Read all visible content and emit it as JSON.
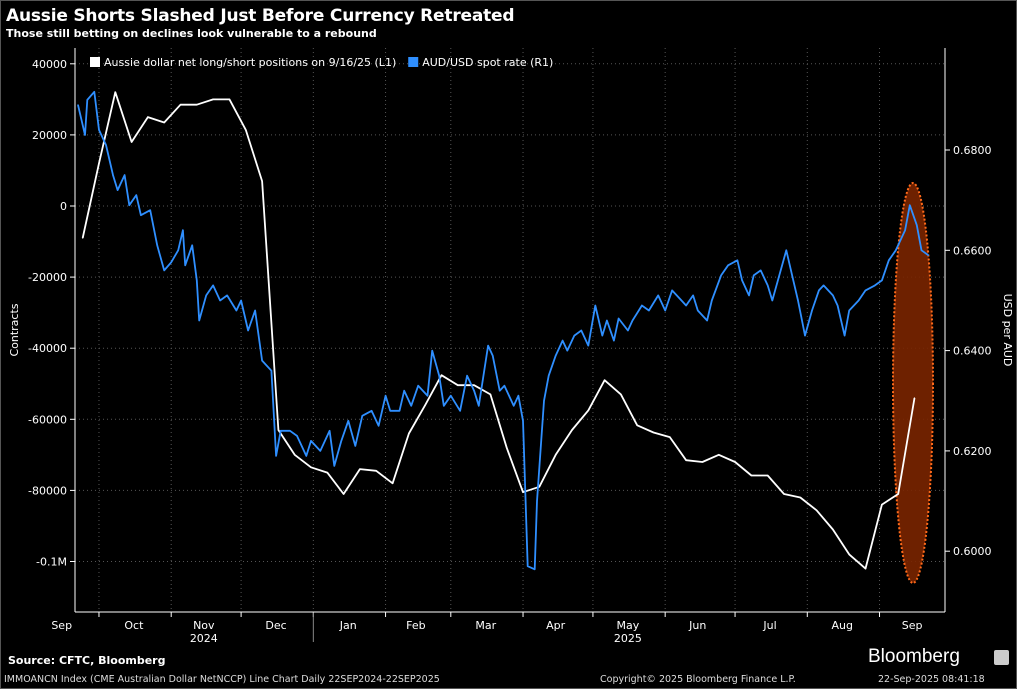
{
  "title": "Aussie Shorts Slashed Just Before Currency Retreated",
  "subtitle": "Those still betting on declines look vulnerable to a rebound",
  "source": "Source: CFTC, Bloomberg",
  "brand": "Bloomberg",
  "footer": {
    "left": "IMMOANCN Index (CME Australian Dollar NetNCCP) Line Chart  Daily 22SEP2024-22SEP2025",
    "mid": "Copyright© 2025 Bloomberg Finance L.P.",
    "right": "22-Sep-2025 08:41:18"
  },
  "chart_data": {
    "type": "line",
    "title": "Aussie Shorts Slashed Just Before Currency Retreated",
    "subtitle": "Those still betting on declines look vulnerable to a rebound",
    "ylabel_left": "Contracts",
    "ylabel_right": "USD per AUD",
    "xlim": [
      "2024-09-22",
      "2025-09-22"
    ],
    "ylim_left": [
      -110000,
      45000
    ],
    "ylim_right": [
      0.592,
      0.698
    ],
    "yticks_left": [
      {
        "v": 40000,
        "label": "40000"
      },
      {
        "v": 20000,
        "label": "20000"
      },
      {
        "v": 0,
        "label": "0"
      },
      {
        "v": -20000,
        "label": "-20000"
      },
      {
        "v": -40000,
        "label": "-40000"
      },
      {
        "v": -60000,
        "label": "-60000"
      },
      {
        "v": -80000,
        "label": "-80000"
      },
      {
        "v": -100000,
        "label": "-0.1M"
      }
    ],
    "yticks_right": [
      {
        "v": 0.68,
        "label": "0.6800"
      },
      {
        "v": 0.66,
        "label": "0.6600"
      },
      {
        "v": 0.64,
        "label": "0.6400"
      },
      {
        "v": 0.62,
        "label": "0.6200"
      },
      {
        "v": 0.6,
        "label": "0.6000"
      }
    ],
    "xticks": [
      {
        "d": "2024-09-15",
        "label": "Sep"
      },
      {
        "d": "2024-10-16",
        "label": "Oct"
      },
      {
        "d": "2024-11-15",
        "label": "Nov"
      },
      {
        "d": "2024-12-16",
        "label": "Dec"
      },
      {
        "d": "2025-01-16",
        "label": "Jan"
      },
      {
        "d": "2025-02-14",
        "label": "Feb"
      },
      {
        "d": "2025-03-16",
        "label": "Mar"
      },
      {
        "d": "2025-04-15",
        "label": "Apr"
      },
      {
        "d": "2025-05-16",
        "label": "May"
      },
      {
        "d": "2025-06-15",
        "label": "Jun"
      },
      {
        "d": "2025-07-16",
        "label": "Jul"
      },
      {
        "d": "2025-08-16",
        "label": "Aug"
      },
      {
        "d": "2025-09-15",
        "label": "Sep"
      }
    ],
    "year_labels": [
      {
        "d": "2024-11-15",
        "label": "2024"
      },
      {
        "d": "2025-05-16",
        "label": "2025"
      }
    ],
    "grid": true,
    "legend_position": "top-left",
    "highlight_color": "#ff6a1a",
    "series": [
      {
        "name": "Aussie dollar net long/short positions on 9/16/25 (L1)",
        "axis": "left",
        "color": "#ffffff",
        "x": [
          "2024-09-24",
          "2024-10-01",
          "2024-10-08",
          "2024-10-15",
          "2024-10-22",
          "2024-10-29",
          "2024-11-05",
          "2024-11-12",
          "2024-11-19",
          "2024-11-26",
          "2024-12-03",
          "2024-12-10",
          "2024-12-17",
          "2024-12-24",
          "2024-12-31",
          "2025-01-07",
          "2025-01-14",
          "2025-01-21",
          "2025-01-28",
          "2025-02-04",
          "2025-02-11",
          "2025-02-18",
          "2025-02-25",
          "2025-03-04",
          "2025-03-11",
          "2025-03-18",
          "2025-03-25",
          "2025-04-01",
          "2025-04-08",
          "2025-04-15",
          "2025-04-22",
          "2025-04-29",
          "2025-05-06",
          "2025-05-13",
          "2025-05-20",
          "2025-05-27",
          "2025-06-03",
          "2025-06-10",
          "2025-06-17",
          "2025-06-24",
          "2025-07-01",
          "2025-07-08",
          "2025-07-15",
          "2025-07-22",
          "2025-07-29",
          "2025-08-05",
          "2025-08-12",
          "2025-08-19",
          "2025-08-26",
          "2025-09-02",
          "2025-09-09",
          "2025-09-16"
        ],
        "values": [
          -9000,
          12000,
          32000,
          18000,
          25000,
          23500,
          28500,
          28500,
          30000,
          30000,
          21400,
          7000,
          -63000,
          -70000,
          -73500,
          -75000,
          -81000,
          -74000,
          -74500,
          -78000,
          -64000,
          -56000,
          -47600,
          -50400,
          -50400,
          -53000,
          -68000,
          -80500,
          -79000,
          -70000,
          -63000,
          -57500,
          -49000,
          -53000,
          -61700,
          -63700,
          -65000,
          -71500,
          -72000,
          -70000,
          -72000,
          -75800,
          -75800,
          -81000,
          -82000,
          -85600,
          -91000,
          -98000,
          -102000,
          -84000,
          -81000,
          -54000
        ]
      },
      {
        "name": "AUD/USD spot rate (R1)",
        "axis": "right",
        "color": "#2f8fff",
        "x": [
          "2024-09-22",
          "2024-09-25",
          "2024-09-26",
          "2024-09-29",
          "2024-10-01",
          "2024-10-04",
          "2024-10-07",
          "2024-10-09",
          "2024-10-12",
          "2024-10-14",
          "2024-10-17",
          "2024-10-19",
          "2024-10-23",
          "2024-10-26",
          "2024-10-29",
          "2024-11-01",
          "2024-11-04",
          "2024-11-06",
          "2024-11-07",
          "2024-11-10",
          "2024-11-12",
          "2024-11-13",
          "2024-11-16",
          "2024-11-19",
          "2024-11-22",
          "2024-11-25",
          "2024-11-29",
          "2024-12-01",
          "2024-12-04",
          "2024-12-07",
          "2024-12-10",
          "2024-12-12",
          "2024-12-14",
          "2024-12-16",
          "2024-12-18",
          "2024-12-22",
          "2024-12-25",
          "2024-12-29",
          "2024-12-31",
          "2025-01-04",
          "2025-01-08",
          "2025-01-10",
          "2025-01-13",
          "2025-01-16",
          "2025-01-19",
          "2025-01-22",
          "2025-01-26",
          "2025-01-29",
          "2025-02-01",
          "2025-02-03",
          "2025-02-07",
          "2025-02-09",
          "2025-02-12",
          "2025-02-15",
          "2025-02-19",
          "2025-02-21",
          "2025-02-24",
          "2025-02-26",
          "2025-03-01",
          "2025-03-05",
          "2025-03-08",
          "2025-03-11",
          "2025-03-13",
          "2025-03-17",
          "2025-03-19",
          "2025-03-22",
          "2025-03-24",
          "2025-03-28",
          "2025-03-30",
          "2025-04-01",
          "2025-04-03",
          "2025-04-06",
          "2025-04-07",
          "2025-04-10",
          "2025-04-12",
          "2025-04-15",
          "2025-04-18",
          "2025-04-20",
          "2025-04-23",
          "2025-04-26",
          "2025-04-29",
          "2025-05-02",
          "2025-05-05",
          "2025-05-07",
          "2025-05-10",
          "2025-05-12",
          "2025-05-16",
          "2025-05-18",
          "2025-05-22",
          "2025-05-25",
          "2025-05-29",
          "2025-06-01",
          "2025-06-04",
          "2025-06-08",
          "2025-06-10",
          "2025-06-13",
          "2025-06-15",
          "2025-06-19",
          "2025-06-21",
          "2025-06-25",
          "2025-06-28",
          "2025-07-02",
          "2025-07-04",
          "2025-07-07",
          "2025-07-09",
          "2025-07-12",
          "2025-07-15",
          "2025-07-17",
          "2025-07-20",
          "2025-07-23",
          "2025-07-26",
          "2025-07-28",
          "2025-07-31",
          "2025-08-03",
          "2025-08-06",
          "2025-08-08",
          "2025-08-12",
          "2025-08-14",
          "2025-08-17",
          "2025-08-19",
          "2025-08-23",
          "2025-08-26",
          "2025-08-30",
          "2025-09-02",
          "2025-09-05",
          "2025-09-08",
          "2025-09-12",
          "2025-09-14",
          "2025-09-17",
          "2025-09-19",
          "2025-09-22"
        ],
        "values": [
          0.689,
          0.683,
          0.69,
          0.6916,
          0.684,
          0.681,
          0.675,
          0.672,
          0.675,
          0.669,
          0.671,
          0.667,
          0.668,
          0.661,
          0.656,
          0.6576,
          0.66,
          0.664,
          0.657,
          0.661,
          0.654,
          0.646,
          0.651,
          0.653,
          0.65,
          0.651,
          0.648,
          0.65,
          0.644,
          0.648,
          0.638,
          0.637,
          0.636,
          0.619,
          0.624,
          0.624,
          0.623,
          0.619,
          0.622,
          0.62,
          0.624,
          0.617,
          0.622,
          0.626,
          0.621,
          0.627,
          0.628,
          0.625,
          0.631,
          0.628,
          0.628,
          0.632,
          0.629,
          0.633,
          0.631,
          0.64,
          0.635,
          0.629,
          0.631,
          0.628,
          0.635,
          0.632,
          0.629,
          0.641,
          0.639,
          0.632,
          0.633,
          0.629,
          0.631,
          0.626,
          0.597,
          0.5964,
          0.61,
          0.63,
          0.635,
          0.639,
          0.642,
          0.64,
          0.643,
          0.644,
          0.641,
          0.649,
          0.643,
          0.646,
          0.642,
          0.6464,
          0.644,
          0.646,
          0.649,
          0.648,
          0.651,
          0.648,
          0.652,
          0.65,
          0.649,
          0.651,
          0.648,
          0.646,
          0.65,
          0.655,
          0.657,
          0.658,
          0.654,
          0.651,
          0.655,
          0.656,
          0.653,
          0.65,
          0.655,
          0.66,
          0.654,
          0.65,
          0.643,
          0.648,
          0.652,
          0.653,
          0.651,
          0.649,
          0.643,
          0.648,
          0.65,
          0.652,
          0.653,
          0.654,
          0.658,
          0.66,
          0.664,
          0.669,
          0.665,
          0.66,
          0.659
        ]
      }
    ]
  }
}
